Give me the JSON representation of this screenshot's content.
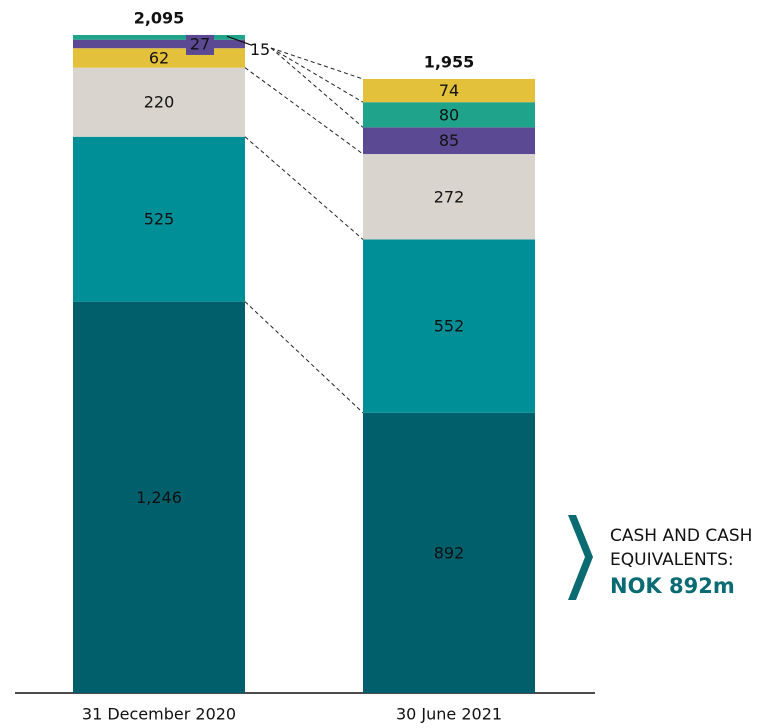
{
  "chart_data": {
    "type": "stacked_bar",
    "categories": [
      "31 December 2020",
      "30 June 2021"
    ],
    "series": [
      {
        "color": "#005f6b",
        "values": [
          1246,
          892
        ],
        "value_labels": [
          "1,246",
          "892"
        ]
      },
      {
        "color": "#008f96",
        "values": [
          525,
          552
        ]
      },
      {
        "color": "#d9d4ce",
        "values": [
          220,
          272
        ]
      },
      {
        "color": "#e3c13a",
        "values": [
          62,
          74
        ]
      },
      {
        "color": "#5b4a93",
        "values": [
          27,
          85
        ]
      },
      {
        "color": "#1fa38a",
        "values": [
          15,
          80
        ]
      }
    ],
    "totals": [
      {
        "value": 2095,
        "label": "2,095"
      },
      {
        "value": 1955,
        "label": "1,955"
      }
    ],
    "annotation": {
      "lines": [
        "CASH AND CASH",
        "EQUIVALENTS:"
      ],
      "highlight": "NOK 892m"
    }
  }
}
